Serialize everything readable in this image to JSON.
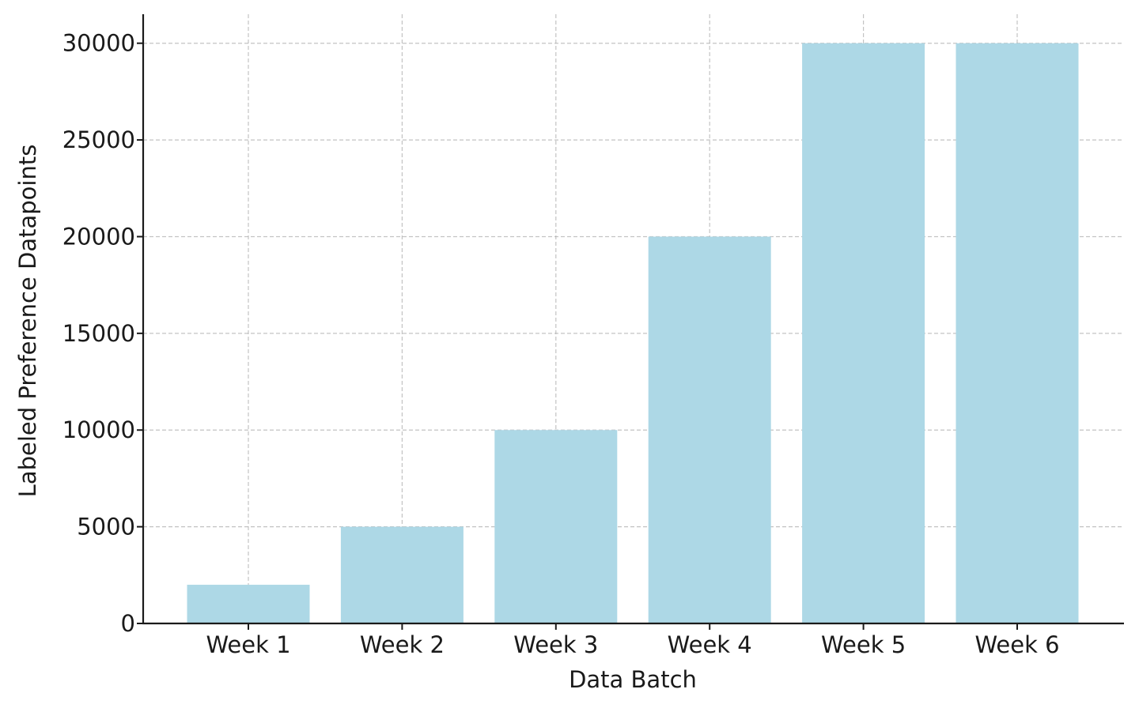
{
  "chart_data": {
    "type": "bar",
    "categories": [
      "Week 1",
      "Week 2",
      "Week 3",
      "Week 4",
      "Week 5",
      "Week 6"
    ],
    "values": [
      2000,
      5000,
      10000,
      20000,
      30000,
      30000
    ],
    "title": "",
    "xlabel": "Data Batch",
    "ylabel": "Labeled Preference Datapoints",
    "ylim": [
      0,
      31500
    ],
    "yticks": [
      0,
      5000,
      10000,
      15000,
      20000,
      25000,
      30000
    ],
    "ytick_labels": [
      "0",
      "5000",
      "10000",
      "15000",
      "20000",
      "25000",
      "30000"
    ],
    "grid": true,
    "legend": "none",
    "bar_color": "#add8e6"
  }
}
